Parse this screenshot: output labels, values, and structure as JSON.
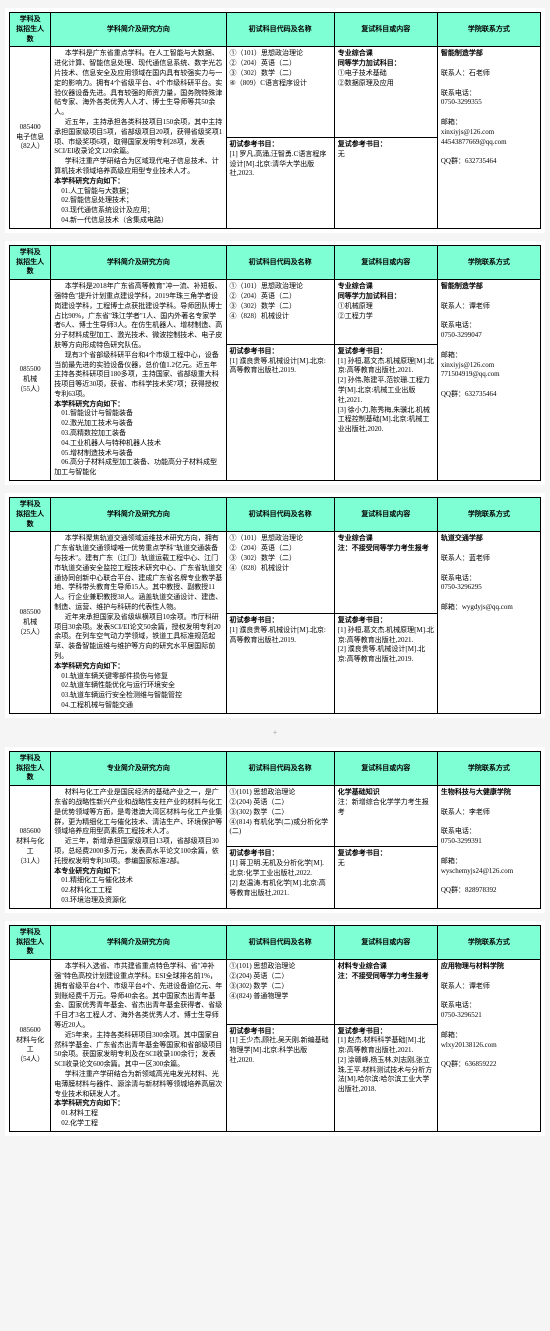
{
  "headers": {
    "col1": "学科及\n拟招生人数",
    "col2_intro": "学科简介及研究方向",
    "col2_major": "专业简介及研究方向",
    "col3": "初试科目代码及名称",
    "col4": "复试科目或内容",
    "col5": "学院联系方式"
  },
  "sections": [
    {
      "id": "085400",
      "id_label": "085400\n电子信息\n（82人）",
      "intro_paras": [
        "本学科是广东省重点学科。在人工智能与大数据、进化计算、智能信息处理、现代通信息系统、数字光芯片技术、信息安全及应用领域在国内具有较强实力与一定的影响力。拥有4个省级平台、4个市级科研平台。实验仪器设备先进。具有较强的师资力量，国务院特殊津帖专家、海外各类优秀人人才、博士生导师等共50余人。",
        "近五年，主持承担各类科技项目150余项，其中主持承担国家级项目5项，省部级项目20项，获得省级奖项1项、市级奖项6项，取得国家发明专利28项，发表SCI/EI收录论文120余篇。",
        "学科注重产学研结合为区域现代电子信息技术、计算机技术领域培养高级应用型专业技术人才。"
      ],
      "dir_head": "本学科研究方向如下：",
      "dirs": [
        "01.人工智能与大数据；",
        "02.智能信息处理技术；",
        "03.现代通信系统设计及应用；",
        "04.新一代信息技术（含集成电路）"
      ],
      "init_exams": [
        "①（101）思想政治理论",
        "②（204）英语（二）",
        "③（302）数学（二）",
        "④（809）C语言程序设计"
      ],
      "init_ref_head": "初试参考书目：",
      "init_refs": [
        "[1] 罗凡,高涌,汪智勇.C语言程序设计[M].北京:清华大学出版社,2023."
      ],
      "fushi_top": [
        "专业综合课",
        "同等学力加试科目：",
        "①电子技术基础",
        "②数据原理及应用"
      ],
      "fushi_ref_head": "复试参考书目：",
      "fushi_refs": [
        "无"
      ],
      "contact_lines": [
        "智能制造学部",
        "",
        "联系人：石老师",
        "",
        "联系电话：",
        "0750-3299355",
        "",
        "邮箱：",
        "xinxiyjs@126.com",
        "44543877669@qq.com",
        "",
        "QQ群：632735464"
      ]
    },
    {
      "id": "085500a",
      "id_label": "085500\n机械\n（55人）",
      "intro_paras": [
        "本学科是2018年广东省高等教育\"冲一流、补短板、强特色\"提升计划重点建设学科，2019年珠三角学者设岗建设学科，工程博士点获批建设学科。导师团队博士占比90%，广东省\"珠江学者\"1人、国内外著名专家学者6人、博士生导师3人。在仿生机器人、增材制造、高分子材料成型加工、激光技术、微波控制技术、电子皮肤等方向形成特色研究队伍。",
        "现有3个省部级科研平台和4个市级工程中心，设备当前最先进的实验设备仪器，总价值1.2亿元。近五年主持各类科研项目180多项，主持国家、省部级重大科技项目等近30项，获省、市科学技术奖7项；获得授权专利63项。"
      ],
      "dir_head": "本学科研究方向如下：",
      "dirs": [
        "01.智能设计与智能装备",
        "02.激光加工技术与装备",
        "03.高精数控加工装备",
        "04.工业机器人与特种机器人技术",
        "05.增材制造技术与装备",
        "06.高分子材料成型加工装备、功能高分子材料成型加工与智能化"
      ],
      "init_exams": [
        "①（101）思想政治理论",
        "②（204）英语（二）",
        "③（302）数学（二）",
        "④（828）机械设计"
      ],
      "init_ref_head": "初试参考书目：",
      "init_refs": [
        "[1] 濮良贵等.机械设计[M].北京:高等教育出版社,2019."
      ],
      "fushi_top": [
        "专业综合课",
        "同等学力加试科目：",
        "①机械原理",
        "②工程力学"
      ],
      "fushi_ref_head": "复试参考书目：",
      "fushi_refs": [
        "[1] 孙桓,葛文杰.机械原理[M].北京:高等教育出版社,2021.",
        "[2] 孙伟,陈建平,范钦珊.工程力学[M].北京:机械工业出版社,2021.",
        "[3] 徐小力,陈秀梅,朱骥北.机械工程控制基础[M].北京:机械工业出版社,2020."
      ],
      "contact_lines": [
        "智能制造学部",
        "",
        "联系人：谭老师",
        "",
        "联系电话：",
        "0750-3299047",
        "",
        "邮箱：",
        "xinxiyjs@126.com",
        "771504919@qq.com",
        "",
        "QQ群：632735464"
      ]
    },
    {
      "id": "085500b",
      "id_label": "085500\n机械\n（25人）",
      "intro_paras": [
        "本学科聚焦轨道交通领域运维技术研究方向，拥有广东省轨道交通领域唯一优势重点学科\"轨道交通装备与技术\"。建有广东（江门）轨道运载工程中心、江门市轨道交通安全监控工程技术研究中心、广东省轨道交通协同创新中心联合平台、建成广东省名牌专业教学基地、学科带头教育生导师15人。其中教授、副教授11人。行企业兼职教授38人。涵盖轨道交通设计、建造、制造、运营、维护与科研的代表性人物。",
        "近年来承担国家及省级纵横项目10余项。市厅科研项目30余项。发表SCI/EI论文50余篇，授权发明专利20余项。在列车空气动力学领域，铁道工具标准规范起草、装备智能运维与维护等方向的研究水平居国际前列。"
      ],
      "dir_head": "本学科研究方向如下：",
      "dirs": [
        "01.轨道车辆关键零部件损伤与修复",
        "02.轨道车辆性能优化与运行环境安全",
        "03.轨道车辆运行安全检测维与智能管控",
        "04.工程机械与智能交通"
      ],
      "init_exams": [
        "①（101）思想政治理论",
        "②（204）英语（二）",
        "③（302）数学（二）",
        "④（828）机械设计"
      ],
      "init_ref_head": "初试参考书目：",
      "init_refs": [
        "[1] 濮良贵等.机械设计[M].北京:高等教育出版社,2019."
      ],
      "fushi_top": [
        "专业综合课",
        "",
        "注：不接受同等学力考生报考"
      ],
      "fushi_ref_head": "复试参考书目：",
      "fushi_refs": [
        "[1] 孙桓,葛文杰.机械原理[M].北京:高等教育出版社,2021.",
        "[2] 濮良贵等.机械设计[M].北京:高等教育出版社,2019."
      ],
      "contact_lines": [
        "轨道交通学部",
        "",
        "联系人：蓝老师",
        "",
        "联系电话：",
        "0750-3296295",
        "",
        "邮箱：wygdyjs@qq.com"
      ]
    },
    {
      "id": "085600a",
      "id_label": "085600\n材料与化工\n（31人）",
      "intro_paras": [
        "材料与化工产业是国民经济的基础产业之一，是广东省的战略性新兴产业和战略性支柱产业的材料与化工是优势领域等方面，是粤港澳大湾区材料与化工产业集群，更为精细化工与催化技术、清洁生产、环境保护等领域培养应用型高素质工程技术人才。",
        "近三年，新增承担国家级项目13项，省部级项目30项，总经费2000多万元，发表高水平论文100余篇，依托授权发明专利30项。参编国家标准2部。"
      ],
      "dir_head": "本专业研究方向如下：",
      "dirs": [
        "01.精细化工与催化技术",
        "02.材料化工工程",
        "03.环境治理及资源化"
      ],
      "init_exams": [
        "①(101) 思想政治理论",
        "②(204) 英语（二）",
        "③(302) 数学（二）",
        "④(814) 有机化学(二)或分析化学(二)"
      ],
      "init_ref_head": "初试参考书目：",
      "init_refs": [
        "[1] 蒋卫明.无机及分析化学[M].北京:化学工业出版社,2022.",
        "[2] 赵温涛.有机化学[M].北京:高等教育出版社,2021."
      ],
      "fushi_top": [
        "化学基础知识",
        "注：新增综合化学学力考生报考"
      ],
      "fushi_ref_head": "复试参考书目：",
      "fushi_refs": [
        "无"
      ],
      "contact_lines": [
        "生物科技与大健康学院",
        "",
        "联系人：李老师",
        "",
        "联系电话：",
        "0750-3299391",
        "",
        "邮箱：",
        "wyschemyjs24@126.com",
        "",
        "QQ群：828978392"
      ]
    },
    {
      "id": "085600b",
      "id_label": "085600\n材料与化工\n（54人）",
      "intro_paras": [
        "本学科入选省、市共建省重点特色学科、省\"冲补强\"特色高校计划建设重点学科。ESI全球排名前1%，拥有省级平台4个、市级平台4个、先进设备逾亿元、年到账经费千万元。导师40余名。其中国家杰出青年基金、国家优秀青年基金、省杰出青年基金获得者、省级千目才3名工程人才、海外各类优秀人才、博士生导师等近20人。",
        "近5年来，主持各类科研项目300余项。其中国家自然科学基金、广东省杰出青年基金等国家和省部级项目50余项。获国家发明专利及在SCI收录100余行；发表SCI收录论文600余篇。其中一区300余篇。",
        "学科注重产学研结合为新领域高光电发光材料、光电薄膜材料与器件、源涂清与新材料等领城培养高层次专业技术和研发人才。"
      ],
      "dir_head": "本学科研究方向如下：",
      "dirs": [
        "01.材料工程",
        "02.化学工程"
      ],
      "init_exams": [
        "①(101) 思想政治理论",
        "②(204) 英语（二）",
        "③(302) 数学（二）",
        "④(824) 普通物理学"
      ],
      "init_ref_head": "初试参考书目：",
      "init_refs": [
        "[1] 王少杰,顾社,吴天刚.新编基础物理学[M].北京:科学出版社,2020."
      ],
      "fushi_top": [
        "材料专业综合课",
        "",
        "注：不接受同等学力考生报考"
      ],
      "fushi_ref_head": "复试参考书目：",
      "fushi_refs": [
        "[1] 赵杰.材料科学基础[M].北京:高等教育出版社,2021.",
        "[2] 涂赣峰,杨玉林,刘志刚,张立珠,王平.材料测试技术与分析方法[M].哈尔滨:哈尔滨工业大学出版社,2018."
      ],
      "contact_lines": [
        "应用物理与材料学院",
        "",
        "联系人：谭老师",
        "",
        "联系电话：",
        "0750-3296521",
        "",
        "邮箱：",
        "wlxy20138126.com",
        "",
        "QQ群：636859222"
      ]
    }
  ],
  "plus": "+"
}
